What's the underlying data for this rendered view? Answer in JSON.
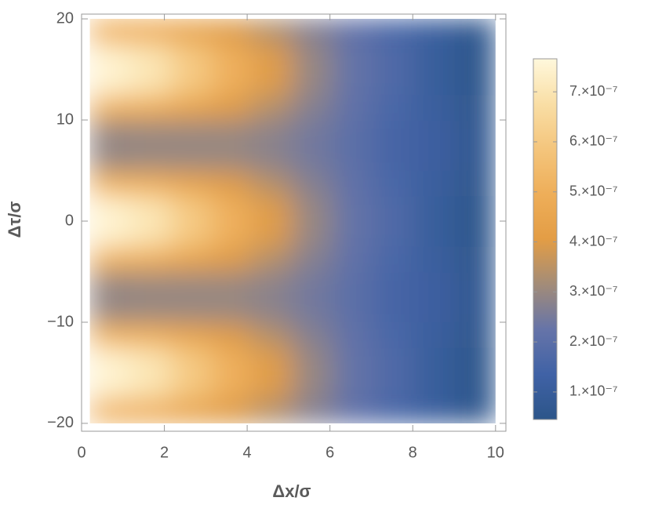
{
  "chart_data": {
    "type": "heatmap",
    "xlabel": "Δx/σ",
    "ylabel": "Δτ/σ",
    "x": [
      0.69,
      1.67,
      2.65,
      3.63,
      4.61,
      5.59,
      6.57,
      7.55,
      8.53,
      9.51
    ],
    "y": [
      -18.75,
      -16.25,
      -13.75,
      -11.25,
      -8.75,
      -6.25,
      -3.75,
      -1.25,
      1.25,
      3.75,
      6.25,
      8.75,
      11.25,
      13.75,
      16.25,
      18.75
    ],
    "z": [
      [
        5.2e-07,
        5e-07,
        4.5e-07,
        4e-07,
        3.4e-07,
        2.7e-07,
        2.1e-07,
        1.6e-07,
        1.1e-07,
        6.5e-08
      ],
      [
        7.45e-07,
        7e-07,
        6e-07,
        5e-07,
        4e-07,
        2.95e-07,
        2.2e-07,
        1.7e-07,
        1.05e-07,
        5.5e-08
      ],
      [
        7.45e-07,
        7e-07,
        6e-07,
        5e-07,
        4e-07,
        2.95e-07,
        2.2e-07,
        1.7e-07,
        1.05e-07,
        5.5e-08
      ],
      [
        5.2e-07,
        5e-07,
        4.5e-07,
        4e-07,
        3.4e-07,
        2.7e-07,
        2.1e-07,
        1.6e-07,
        1.1e-07,
        6.5e-08
      ],
      [
        2.95e-07,
        3e-07,
        3e-07,
        3e-07,
        2.8e-07,
        2.45e-07,
        2e-07,
        1.5e-07,
        1.15e-07,
        7e-08
      ],
      [
        2.95e-07,
        3e-07,
        3e-07,
        3e-07,
        2.8e-07,
        2.45e-07,
        2e-07,
        1.5e-07,
        1.15e-07,
        7e-08
      ],
      [
        5.2e-07,
        5e-07,
        4.5e-07,
        4e-07,
        3.4e-07,
        2.7e-07,
        2.1e-07,
        1.6e-07,
        1.1e-07,
        6.5e-08
      ],
      [
        7.45e-07,
        7e-07,
        6e-07,
        5e-07,
        4e-07,
        2.95e-07,
        2.2e-07,
        1.7e-07,
        1.05e-07,
        5.5e-08
      ],
      [
        7.45e-07,
        7e-07,
        6e-07,
        5e-07,
        4e-07,
        2.95e-07,
        2.2e-07,
        1.7e-07,
        1.05e-07,
        5.5e-08
      ],
      [
        5.2e-07,
        5e-07,
        4.5e-07,
        4e-07,
        3.4e-07,
        2.7e-07,
        2.1e-07,
        1.6e-07,
        1.1e-07,
        6.5e-08
      ],
      [
        2.95e-07,
        3e-07,
        3e-07,
        3e-07,
        2.8e-07,
        2.45e-07,
        2e-07,
        1.5e-07,
        1.15e-07,
        7e-08
      ],
      [
        2.95e-07,
        3e-07,
        3e-07,
        3e-07,
        2.8e-07,
        2.45e-07,
        2e-07,
        1.5e-07,
        1.15e-07,
        7e-08
      ],
      [
        5.2e-07,
        5e-07,
        4.5e-07,
        4e-07,
        3.4e-07,
        2.7e-07,
        2.1e-07,
        1.6e-07,
        1.1e-07,
        6.5e-08
      ],
      [
        7.45e-07,
        7e-07,
        6e-07,
        5e-07,
        4e-07,
        2.95e-07,
        2.2e-07,
        1.7e-07,
        1.05e-07,
        5.5e-08
      ],
      [
        7.45e-07,
        7e-07,
        6e-07,
        5e-07,
        4e-07,
        2.95e-07,
        2.2e-07,
        1.7e-07,
        1.05e-07,
        5.5e-08
      ],
      [
        5.2e-07,
        5e-07,
        4.5e-07,
        4e-07,
        3.4e-07,
        2.7e-07,
        2.1e-07,
        1.6e-07,
        1.1e-07,
        6.5e-08
      ]
    ],
    "xlim": [
      0,
      10.25
    ],
    "ylim": [
      -20.78,
      20.47
    ],
    "xticks": [
      0,
      2,
      4,
      6,
      8,
      10
    ],
    "yticks": [
      {
        "value": -20,
        "label": "−20"
      },
      {
        "value": -10,
        "label": "−10"
      },
      0,
      10,
      20
    ],
    "zlim": [
      4.5e-08,
      7.66e-07
    ],
    "zticks": [
      {
        "value": 1e-07,
        "label": "1.×10⁻⁷"
      },
      {
        "value": 2e-07,
        "label": "2.×10⁻⁷"
      },
      {
        "value": 3e-07,
        "label": "3.×10⁻⁷"
      },
      {
        "value": 4e-07,
        "label": "4.×10⁻⁷"
      },
      {
        "value": 5e-07,
        "label": "5.×10⁻⁷"
      },
      {
        "value": 6e-07,
        "label": "6.×10⁻⁷"
      },
      {
        "value": 7e-07,
        "label": "7.×10⁻⁷"
      }
    ],
    "colormap": [
      "#2c5589",
      "#4062a6",
      "#6674a8",
      "#a38c78",
      "#e39d45",
      "#eeae59",
      "#f4c57c",
      "#f9dea5",
      "#fff8dc"
    ]
  }
}
